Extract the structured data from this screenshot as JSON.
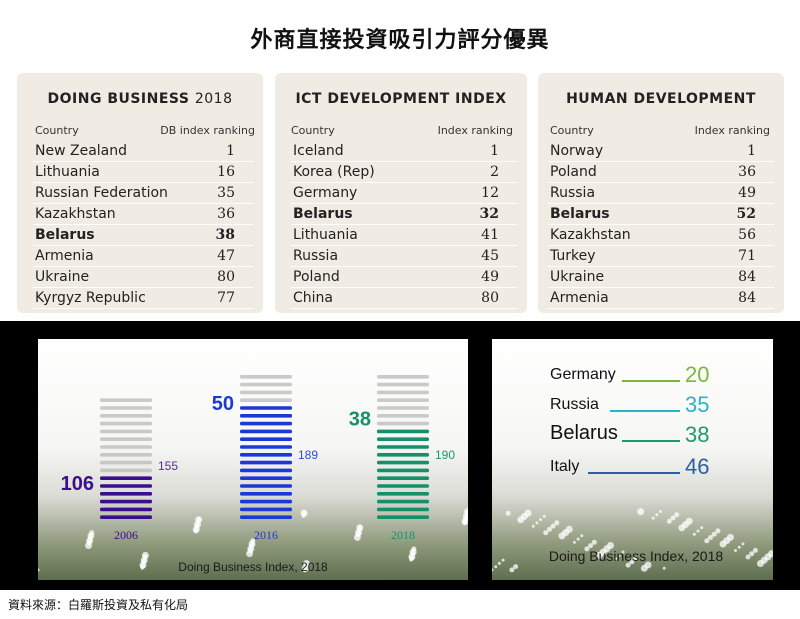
{
  "title": "外商直接投資吸引力評分優異",
  "tables": [
    {
      "title_main": "DOING BUSINESS",
      "title_year": "2018",
      "col_country": "Country",
      "col_value": "DB index ranking",
      "rows": [
        {
          "country": "New Zealand",
          "value": "1",
          "bold": false
        },
        {
          "country": "Lithuania",
          "value": "16",
          "bold": false
        },
        {
          "country": "Russian Federation",
          "value": "35",
          "bold": false
        },
        {
          "country": "Kazakhstan",
          "value": "36",
          "bold": false
        },
        {
          "country": "Belarus",
          "value": "38",
          "bold": true
        },
        {
          "country": "Armenia",
          "value": "47",
          "bold": false
        },
        {
          "country": "Ukraine",
          "value": "80",
          "bold": false
        },
        {
          "country": "Kyrgyz Republic",
          "value": "77",
          "bold": false
        }
      ]
    },
    {
      "title_main": "ICT DEVELOPMENT INDEX",
      "title_year": "",
      "col_country": "Country",
      "col_value": "Index ranking",
      "rows": [
        {
          "country": "Iceland",
          "value": "1",
          "bold": false
        },
        {
          "country": "Korea (Rep)",
          "value": "2",
          "bold": false
        },
        {
          "country": "Germany",
          "value": "12",
          "bold": false
        },
        {
          "country": "Belarus",
          "value": "32",
          "bold": true
        },
        {
          "country": "Lithuania",
          "value": "41",
          "bold": false
        },
        {
          "country": "Russia",
          "value": "45",
          "bold": false
        },
        {
          "country": "Poland",
          "value": "49",
          "bold": false
        },
        {
          "country": "China",
          "value": "80",
          "bold": false
        }
      ]
    },
    {
      "title_main": "HUMAN DEVELOPMENT",
      "title_year": "",
      "col_country": "Country",
      "col_value": "Index ranking",
      "rows": [
        {
          "country": "Norway",
          "value": "1",
          "bold": false
        },
        {
          "country": "Poland",
          "value": "36",
          "bold": false
        },
        {
          "country": "Russia",
          "value": "49",
          "bold": false
        },
        {
          "country": "Belarus",
          "value": "52",
          "bold": true
        },
        {
          "country": "Kazakhstan",
          "value": "56",
          "bold": false
        },
        {
          "country": "Turkey",
          "value": "71",
          "bold": false
        },
        {
          "country": "Ukraine",
          "value": "84",
          "bold": false
        },
        {
          "country": "Armenia",
          "value": "84",
          "bold": false
        }
      ]
    }
  ],
  "chart_data": [
    {
      "type": "bar",
      "caption": "Doing Business Index, 2018",
      "categories": [
        "2006",
        "2016",
        "2018"
      ],
      "series": [
        {
          "values": [
            106,
            50,
            38
          ]
        }
      ],
      "totals": [
        155,
        189,
        190
      ],
      "colors": [
        "#3b0f8c",
        "#1c39d6",
        "#16906a"
      ],
      "rank_label_colors": [
        "#3b0f8c",
        "#1c39d6",
        "#16906a"
      ],
      "total_label_colors": [
        "#5a2a9a",
        "#2d4fd0",
        "#1f9a6e"
      ]
    },
    {
      "type": "table",
      "caption": "Doing Business Index, 2018",
      "categories": [
        "Germany",
        "Russia",
        "Belarus",
        "Italy"
      ],
      "values": [
        20,
        35,
        38,
        46
      ],
      "colors": [
        "#7ab83a",
        "#2bb3c9",
        "#1f9a6e",
        "#2a5fa8"
      ]
    }
  ],
  "source": "資料來源：白羅斯投資及私有化局"
}
